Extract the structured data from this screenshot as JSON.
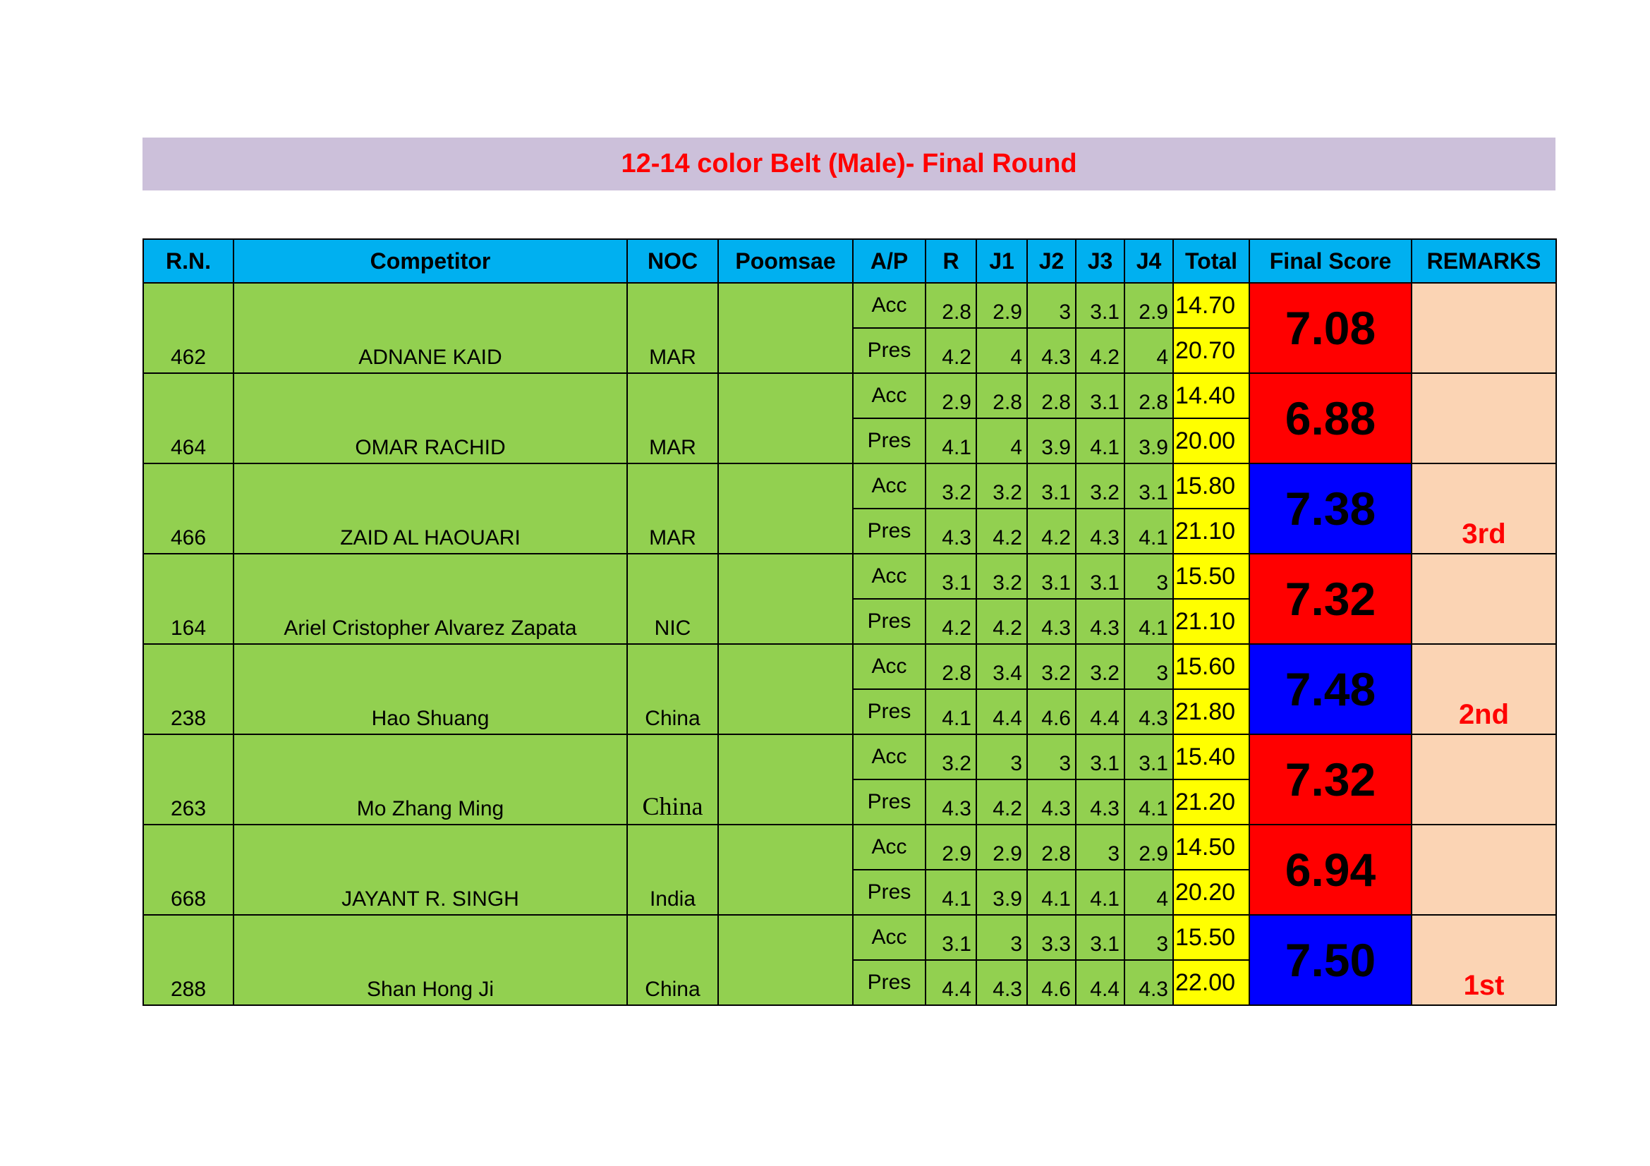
{
  "title": "12-14 color Belt (Male)- Final Round",
  "colors": {
    "header": "#00B0F0",
    "row": "#92D050",
    "total": "#FFFF00",
    "final_red": "#FF0000",
    "final_blue": "#0000FF",
    "remarks": "#FBD4B4",
    "title_bar": "#CCC0DA",
    "title_text": "#FF0000"
  },
  "headers": [
    "R.N.",
    "Competitor",
    "NOC",
    "Poomsae",
    "A/P",
    "R",
    "J1",
    "J2",
    "J3",
    "J4",
    "Total",
    "Final Score",
    "REMARKS"
  ],
  "competitors": [
    {
      "rn": "462",
      "name": "ADNANE KAID",
      "noc": "MAR",
      "poomsae": "",
      "final": "7.08",
      "final_color": "red",
      "remarks": "",
      "acc": {
        "label": "Acc",
        "scores": [
          "2.8",
          "2.9",
          "3",
          "3.1",
          "2.9"
        ],
        "total": "14.70"
      },
      "pres": {
        "label": "Pres",
        "scores": [
          "4.2",
          "4",
          "4.3",
          "4.2",
          "4"
        ],
        "total": "20.70"
      }
    },
    {
      "rn": "464",
      "name": "OMAR RACHID",
      "noc": "MAR",
      "poomsae": "",
      "final": "6.88",
      "final_color": "red",
      "remarks": "",
      "acc": {
        "label": "Acc",
        "scores": [
          "2.9",
          "2.8",
          "2.8",
          "3.1",
          "2.8"
        ],
        "total": "14.40"
      },
      "pres": {
        "label": "Pres",
        "scores": [
          "4.1",
          "4",
          "3.9",
          "4.1",
          "3.9"
        ],
        "total": "20.00"
      }
    },
    {
      "rn": "466",
      "name": "ZAID AL HAOUARI",
      "noc": "MAR",
      "poomsae": "",
      "final": "7.38",
      "final_color": "blue",
      "remarks": "3rd",
      "acc": {
        "label": "Acc",
        "scores": [
          "3.2",
          "3.2",
          "3.1",
          "3.2",
          "3.1"
        ],
        "total": "15.80"
      },
      "pres": {
        "label": "Pres",
        "scores": [
          "4.3",
          "4.2",
          "4.2",
          "4.3",
          "4.1"
        ],
        "total": "21.10"
      }
    },
    {
      "rn": "164",
      "name": "Ariel Cristopher Alvarez Zapata",
      "noc": "NIC",
      "poomsae": "",
      "final": "7.32",
      "final_color": "red",
      "remarks": "",
      "acc": {
        "label": "Acc",
        "scores": [
          "3.1",
          "3.2",
          "3.1",
          "3.1",
          "3"
        ],
        "total": "15.50"
      },
      "pres": {
        "label": "Pres",
        "scores": [
          "4.2",
          "4.2",
          "4.3",
          "4.3",
          "4.1"
        ],
        "total": "21.10"
      }
    },
    {
      "rn": "238",
      "name": "Hao  Shuang",
      "noc": "China",
      "poomsae": "",
      "final": "7.48",
      "final_color": "blue",
      "remarks": "2nd",
      "acc": {
        "label": "Acc",
        "scores": [
          "2.8",
          "3.4",
          "3.2",
          "3.2",
          "3"
        ],
        "total": "15.60"
      },
      "pres": {
        "label": "Pres",
        "scores": [
          "4.1",
          "4.4",
          "4.6",
          "4.4",
          "4.3"
        ],
        "total": "21.80"
      }
    },
    {
      "rn": "263",
      "name": "Mo Zhang Ming",
      "noc": "China",
      "noc_serif": true,
      "poomsae": "",
      "final": "7.32",
      "final_color": "red",
      "remarks": "",
      "acc": {
        "label": "Acc",
        "scores": [
          "3.2",
          "3",
          "3",
          "3.1",
          "3.1"
        ],
        "total": "15.40"
      },
      "pres": {
        "label": "Pres",
        "scores": [
          "4.3",
          "4.2",
          "4.3",
          "4.3",
          "4.1"
        ],
        "total": "21.20"
      }
    },
    {
      "rn": "668",
      "name": "JAYANT R. SINGH",
      "noc": "India",
      "poomsae": "",
      "final": "6.94",
      "final_color": "red",
      "remarks": "",
      "acc": {
        "label": "Acc",
        "scores": [
          "2.9",
          "2.9",
          "2.8",
          "3",
          "2.9"
        ],
        "total": "14.50"
      },
      "pres": {
        "label": "Pres",
        "scores": [
          "4.1",
          "3.9",
          "4.1",
          "4.1",
          "4"
        ],
        "total": "20.20"
      }
    },
    {
      "rn": "288",
      "name": "Shan Hong Ji",
      "noc": "China",
      "poomsae": "",
      "final": "7.50",
      "final_color": "blue",
      "remarks": "1st",
      "acc": {
        "label": "Acc",
        "scores": [
          "3.1",
          "3",
          "3.3",
          "3.1",
          "3"
        ],
        "total": "15.50"
      },
      "pres": {
        "label": "Pres",
        "scores": [
          "4.4",
          "4.3",
          "4.6",
          "4.4",
          "4.3"
        ],
        "total": "22.00"
      }
    }
  ]
}
